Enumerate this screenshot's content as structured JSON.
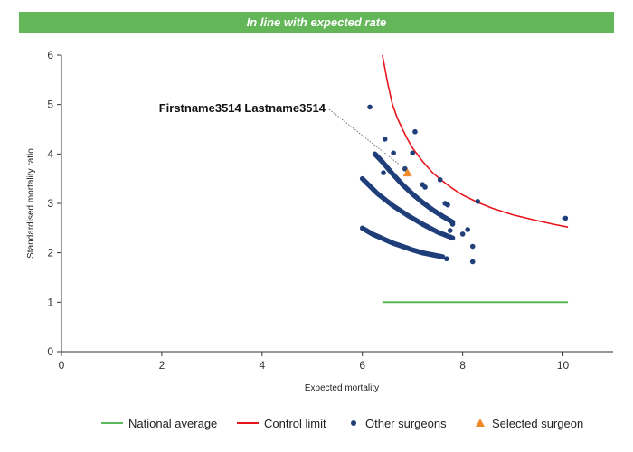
{
  "header": {
    "title": "In line with expected rate"
  },
  "chart_data": {
    "type": "scatter",
    "xlabel": "Expected mortality",
    "ylabel": "Standardised mortality ratio",
    "xlim": [
      0,
      11
    ],
    "ylim": [
      0,
      6
    ],
    "xticks": [
      0,
      2,
      4,
      6,
      8,
      10
    ],
    "yticks": [
      0,
      1,
      2,
      3,
      4,
      5,
      6
    ],
    "grid": false,
    "legend_position": "bottom",
    "colors": {
      "national_average": "#5cb85c",
      "control_limit": "#e8141b",
      "other_surgeons": "#1f3e7a",
      "selected_surgeon": "#f0892c"
    },
    "legend": [
      {
        "key": "national_average",
        "label": "National average",
        "marker": "line"
      },
      {
        "key": "control_limit",
        "label": "Control limit",
        "marker": "line"
      },
      {
        "key": "other_surgeons",
        "label": "Other surgeons",
        "marker": "circle"
      },
      {
        "key": "selected_surgeon",
        "label": "Selected surgeon",
        "marker": "triangle"
      }
    ],
    "series": [
      {
        "name": "National average",
        "type": "line",
        "x": [
          6.4,
          10.1
        ],
        "y": [
          1.0,
          1.0
        ]
      },
      {
        "name": "Control limit",
        "type": "line",
        "x": [
          6.4,
          6.5,
          6.6,
          6.7,
          6.8,
          6.9,
          7.0,
          7.2,
          7.4,
          7.6,
          7.8,
          8.0,
          8.3,
          8.6,
          9.0,
          9.4,
          9.8,
          10.1
        ],
        "y": [
          6.0,
          5.45,
          5.0,
          4.72,
          4.5,
          4.3,
          4.12,
          3.85,
          3.62,
          3.45,
          3.3,
          3.17,
          3.02,
          2.9,
          2.77,
          2.67,
          2.58,
          2.52
        ]
      },
      {
        "name": "Other surgeons",
        "type": "scatter",
        "x": [
          6.15,
          6.45,
          6.62,
          7.05,
          7.0,
          6.85,
          6.42,
          7.2,
          7.25,
          7.55,
          7.65,
          7.7,
          7.8,
          8.1,
          8.3,
          7.75,
          8.0,
          8.2,
          8.2,
          7.68,
          10.05
        ],
        "y": [
          4.95,
          4.3,
          4.02,
          4.45,
          4.02,
          3.7,
          3.62,
          3.38,
          3.33,
          3.48,
          3.0,
          2.97,
          2.58,
          2.47,
          3.04,
          2.45,
          2.38,
          2.13,
          1.82,
          1.88,
          2.7
        ]
      },
      {
        "name": "Other surgeons",
        "type": "band",
        "x": [
          6.0,
          6.2,
          6.4,
          6.6,
          6.8,
          7.0,
          7.2,
          7.4,
          7.6
        ],
        "y": [
          2.5,
          2.38,
          2.29,
          2.2,
          2.13,
          2.06,
          2.0,
          1.96,
          1.92
        ]
      },
      {
        "name": "Other surgeons",
        "type": "band",
        "x": [
          6.0,
          6.3,
          6.6,
          6.9,
          7.2,
          7.5,
          7.8
        ],
        "y": [
          3.5,
          3.2,
          2.96,
          2.76,
          2.58,
          2.42,
          2.3
        ]
      },
      {
        "name": "Other surgeons",
        "type": "band",
        "x": [
          6.25,
          6.4,
          6.6,
          6.8,
          7.0,
          7.2,
          7.4,
          7.6,
          7.8
        ],
        "y": [
          4.0,
          3.84,
          3.6,
          3.38,
          3.19,
          3.02,
          2.87,
          2.74,
          2.62
        ]
      },
      {
        "name": "Selected surgeon",
        "type": "scatter",
        "x": [
          6.9
        ],
        "y": [
          3.62
        ]
      }
    ],
    "annotation": {
      "text": "Firstname3514 Lastname3514",
      "target_x": 6.9,
      "target_y": 3.62
    }
  }
}
